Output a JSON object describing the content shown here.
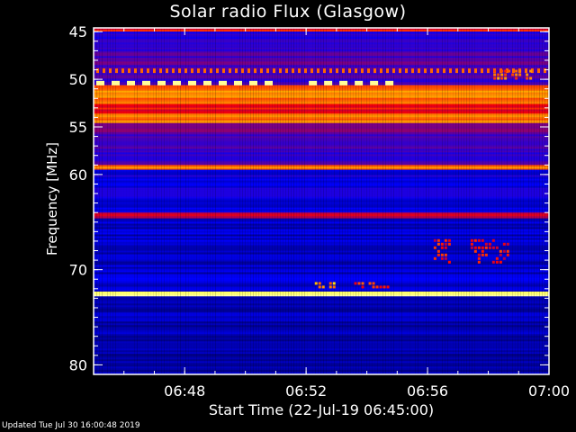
{
  "chart_data": {
    "type": "heatmap",
    "title": "Solar radio Flux (Glasgow)",
    "xlabel": "Start Time (22-Jul-19 06:45:00)",
    "ylabel": "Frequency [MHz]",
    "xlim": [
      "06:45",
      "07:00"
    ],
    "ylim": [
      44.6,
      81
    ],
    "y_inverted": true,
    "x_ticks": [
      "06:48",
      "06:52",
      "06:56",
      "07:00"
    ],
    "y_ticks": [
      45,
      50,
      55,
      60,
      70,
      80
    ],
    "colormap": [
      "#000000",
      "#0000ff",
      "#ff0000",
      "#ffff00",
      "#ffffff"
    ],
    "bands": [
      {
        "f": [
          44.6,
          45.0
        ],
        "level": 0.5
      },
      {
        "f": [
          45.0,
          47.0
        ],
        "level": 0.28
      },
      {
        "f": [
          47.0,
          48.8
        ],
        "level": 0.33
      },
      {
        "f": [
          48.8,
          50.6
        ],
        "level": 0.3
      },
      {
        "f": [
          50.6,
          51.0
        ],
        "level": 0.6
      },
      {
        "f": [
          51.0,
          52.6
        ],
        "level": 0.62
      },
      {
        "f": [
          52.6,
          53.6
        ],
        "level": 0.5
      },
      {
        "f": [
          53.6,
          54.3
        ],
        "level": 0.6
      },
      {
        "f": [
          54.3,
          54.6
        ],
        "level": 0.66
      },
      {
        "f": [
          54.6,
          55.6
        ],
        "level": 0.38
      },
      {
        "f": [
          55.6,
          59.0
        ],
        "level": 0.3
      },
      {
        "f": [
          59.0,
          59.5
        ],
        "level": 0.62
      },
      {
        "f": [
          59.5,
          64.0
        ],
        "level": 0.24
      },
      {
        "f": [
          64.0,
          64.6
        ],
        "level": 0.45
      },
      {
        "f": [
          64.6,
          72.3
        ],
        "level": 0.2
      },
      {
        "f": [
          72.3,
          72.8
        ],
        "level": 0.88
      },
      {
        "f": [
          72.8,
          81.0
        ],
        "level": 0.17
      }
    ],
    "periodic_marks": [
      {
        "f": 49.1,
        "t": [
          "06:45",
          "07:00"
        ],
        "level": 0.6
      },
      {
        "f": 50.4,
        "t": [
          "06:45",
          "06:51"
        ],
        "level": 0.9
      },
      {
        "f": 50.4,
        "t": [
          "06:52",
          "06:55"
        ],
        "level": 0.9
      }
    ],
    "bursts": [
      {
        "t": [
          "06:52:10",
          "06:52:55"
        ],
        "f": [
          71.3,
          71.8
        ],
        "level": 0.65
      },
      {
        "t": [
          "06:53:35",
          "06:54:45"
        ],
        "f": [
          71.3,
          71.8
        ],
        "level": 0.55
      },
      {
        "t": [
          "06:56:05",
          "06:56:45"
        ],
        "f": [
          66.8,
          69.2
        ],
        "level": 0.5
      },
      {
        "t": [
          "06:57:25",
          "06:58:40"
        ],
        "f": [
          66.8,
          69.2
        ],
        "level": 0.5
      },
      {
        "t": [
          "06:58:10",
          "06:59:40"
        ],
        "f": [
          49.0,
          49.8
        ],
        "level": 0.6
      }
    ]
  },
  "footer": "Updated Tue Jul 30 16:00:48 2019"
}
